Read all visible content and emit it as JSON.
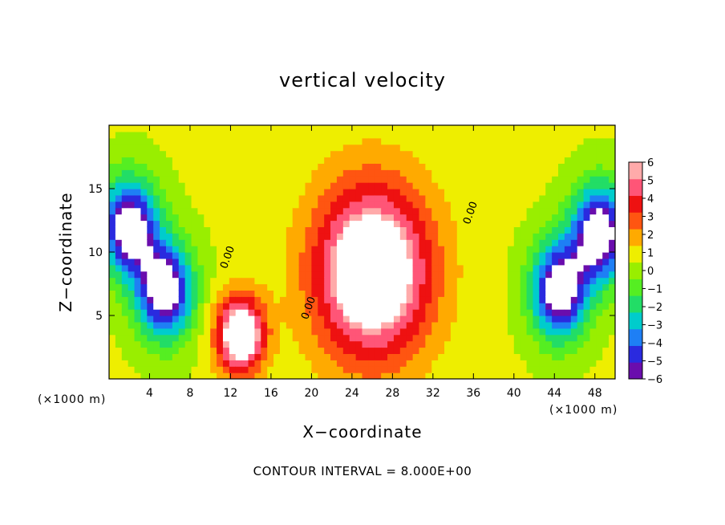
{
  "chart_data": {
    "type": "heatmap",
    "title": "vertical velocity",
    "xlabel": "X−coordinate",
    "ylabel": "Z−coordinate",
    "x_unit_label": "(×1000 m)",
    "contour_interval_label": "CONTOUR INTERVAL = 8.000E+00",
    "contour_label": "0.00",
    "xlim": [
      0,
      50
    ],
    "ylim": [
      0,
      20
    ],
    "x_ticks": [
      4,
      8,
      12,
      16,
      20,
      24,
      28,
      32,
      36,
      40,
      44,
      48
    ],
    "y_ticks": [
      5,
      10,
      15
    ],
    "colorbar": {
      "min": -6,
      "max": 6,
      "tick_labels": [
        "6",
        "5",
        "4",
        "3",
        "2",
        "1",
        "0",
        "−1",
        "−2",
        "−3",
        "−4",
        "−5",
        "−6"
      ],
      "tick_values": [
        6,
        5,
        4,
        3,
        2,
        1,
        0,
        -1,
        -2,
        -3,
        -4,
        -5,
        -6
      ],
      "colors": [
        "#6a0dad",
        "#2a2adf",
        "#1e7ff5",
        "#00cccc",
        "#22dd66",
        "#55ee22",
        "#99ee00",
        "#eeee00",
        "#ffaa00",
        "#ff5511",
        "#ee1111",
        "#ff5577",
        "#ffaaaa"
      ]
    },
    "features": [
      {
        "kind": "updraft",
        "x": 26.0,
        "z": 8.5,
        "peak": 6
      },
      {
        "kind": "updraft",
        "x": 13.0,
        "z": 3.5,
        "peak": 6
      },
      {
        "kind": "downdraft",
        "x": 5.5,
        "z": 7.0,
        "peak": -6
      },
      {
        "kind": "downdraft",
        "x": 44.5,
        "z": 7.0,
        "peak": -6
      },
      {
        "kind": "downdraft",
        "x": 2.0,
        "z": 12.0,
        "peak": -6
      },
      {
        "kind": "downdraft",
        "x": 48.5,
        "z": 11.5,
        "peak": -6
      }
    ],
    "zero_contours": [
      {
        "label_x": 12.0,
        "label_z": 9.5
      },
      {
        "label_x": 20.0,
        "label_z": 5.5
      },
      {
        "label_x": 36.0,
        "label_z": 13.0
      }
    ]
  }
}
